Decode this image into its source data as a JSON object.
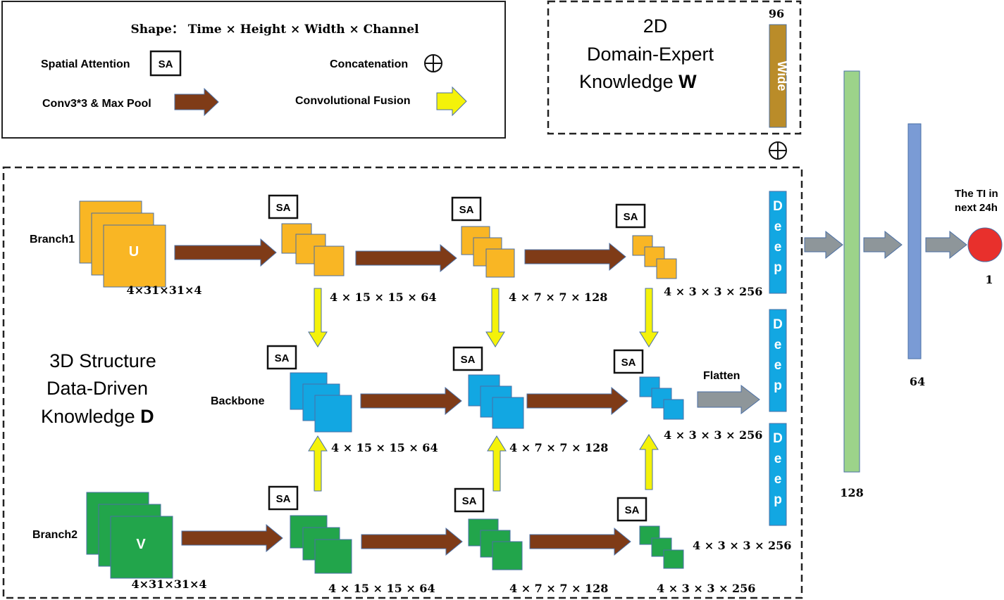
{
  "legend": {
    "shape_text": "Shape： Time × Height × Width × Channel",
    "spatial_attention": "Spatial Attention",
    "sa_symbol": "SA",
    "concatenation": "Concatenation",
    "conv_pool": "Conv3*3 & Max Pool",
    "conv_fusion": "Convolutional Fusion"
  },
  "wide": {
    "title_line1": "2D",
    "title_line2": "Domain-Expert",
    "title_line3": "Knowledge ",
    "title_symbol": "W",
    "size": "96",
    "bar_label": "Wide"
  },
  "structure": {
    "title_line1": "3D Structure",
    "title_line2": "Data-Driven",
    "title_line3": "Knowledge ",
    "title_symbol": "D"
  },
  "branches": {
    "branch1": "Branch1",
    "backbone": "Backbone",
    "branch2": "Branch2",
    "u_label": "U",
    "v_label": "V"
  },
  "shapes": {
    "input": "4×31×31×4",
    "s1": "4 × 15 × 15 × 64",
    "s2": "4 × 7 × 7 × 128",
    "s3": "4 × 3 × 3 × 256"
  },
  "sa": "SA",
  "flatten": "Flatten",
  "deep": "Deep",
  "dense": {
    "d128": "128",
    "d64": "64",
    "d1": "1"
  },
  "output": {
    "line1": "The TI in",
    "line2": "next 24h"
  },
  "colors": {
    "orange": "#F9B624",
    "blue": "#12A7E2",
    "green": "#22A54B",
    "brown_arrow": "#7F3B17",
    "yellow_arrow": "#F4F20A",
    "gray_arrow": "#8E969A",
    "wide_bar": "#BA8C29",
    "dense128": "#9CD38A",
    "dense64": "#7A9BD5",
    "output_node": "#E8302C"
  }
}
